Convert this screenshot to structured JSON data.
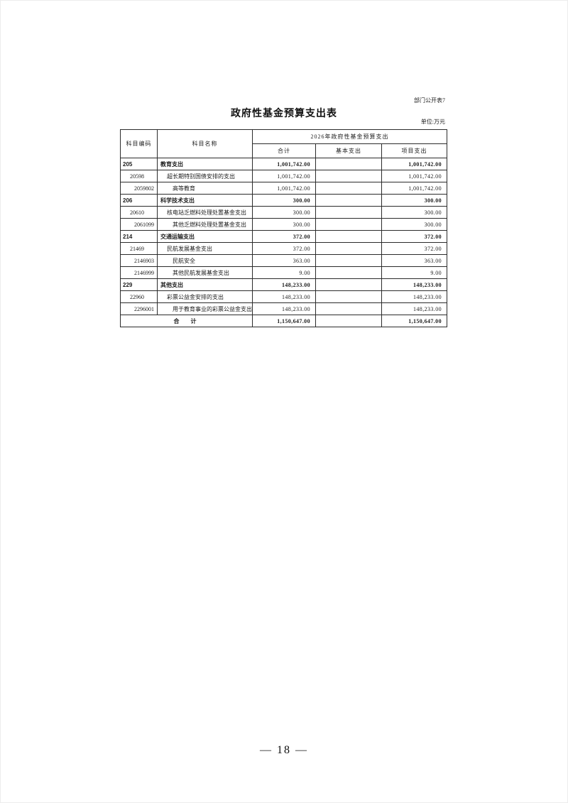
{
  "page": {
    "doc_label": "部门公开表7",
    "title": "政府性基金预算支出表",
    "unit_label": "单位:万元",
    "page_number": "— 18 —"
  },
  "table": {
    "header": {
      "code": "科目编码",
      "name": "科目名称",
      "group": "2026年政府性基金预算支出",
      "total": "合计",
      "basic": "基本支出",
      "project": "项目支出"
    },
    "rows": [
      {
        "code": "205",
        "name": "教育支出",
        "total": "1,001,742.00",
        "basic": "",
        "project": "1,001,742.00",
        "level": 1,
        "bold": true
      },
      {
        "code": "20598",
        "name": "超长期特别国债安排的支出",
        "total": "1,001,742.00",
        "basic": "",
        "project": "1,001,742.00",
        "level": 2,
        "bold": false
      },
      {
        "code": "2059802",
        "name": "高等教育",
        "total": "1,001,742.00",
        "basic": "",
        "project": "1,001,742.00",
        "level": 3,
        "bold": false
      },
      {
        "code": "206",
        "name": "科学技术支出",
        "total": "300.00",
        "basic": "",
        "project": "300.00",
        "level": 1,
        "bold": true
      },
      {
        "code": "20610",
        "name": "核电站乏燃料处理处置基金支出",
        "total": "300.00",
        "basic": "",
        "project": "300.00",
        "level": 2,
        "bold": false
      },
      {
        "code": "2061099",
        "name": "其他乏燃料处理处置基金支出",
        "total": "300.00",
        "basic": "",
        "project": "300.00",
        "level": 3,
        "bold": false
      },
      {
        "code": "214",
        "name": "交通运输支出",
        "total": "372.00",
        "basic": "",
        "project": "372.00",
        "level": 1,
        "bold": true
      },
      {
        "code": "21469",
        "name": "民航发展基金支出",
        "total": "372.00",
        "basic": "",
        "project": "372.00",
        "level": 2,
        "bold": false
      },
      {
        "code": "2146903",
        "name": "民航安全",
        "total": "363.00",
        "basic": "",
        "project": "363.00",
        "level": 3,
        "bold": false
      },
      {
        "code": "2146999",
        "name": "其他民航发展基金支出",
        "total": "9.00",
        "basic": "",
        "project": "9.00",
        "level": 3,
        "bold": false
      },
      {
        "code": "229",
        "name": "其他支出",
        "total": "148,233.00",
        "basic": "",
        "project": "148,233.00",
        "level": 1,
        "bold": true
      },
      {
        "code": "22960",
        "name": "彩票公益金安排的支出",
        "total": "148,233.00",
        "basic": "",
        "project": "148,233.00",
        "level": 2,
        "bold": false
      },
      {
        "code": "2296001",
        "name": "用于教育事业的彩票公益金支出",
        "total": "148,233.00",
        "basic": "",
        "project": "148,233.00",
        "level": 3,
        "bold": false
      },
      {
        "is_total": true,
        "label": "合　计",
        "total": "1,150,647.00",
        "basic": "",
        "project": "1,150,647.00",
        "bold": true
      }
    ]
  }
}
